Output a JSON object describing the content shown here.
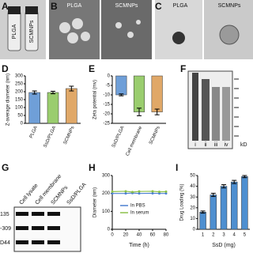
{
  "panel_labels": [
    "A",
    "B",
    "C",
    "D",
    "E",
    "F",
    "G",
    "H",
    "I"
  ],
  "images": {
    "A": [
      "PLGA",
      "SCMNPs"
    ],
    "B": [
      "PLGA",
      "SCMNPs"
    ],
    "C": [
      "PLGA",
      "SCMNPs"
    ],
    "F": {
      "lanes": [
        "i",
        "ii",
        "iii",
        "iv"
      ],
      "unit": "kD"
    },
    "G": {
      "columns": [
        "Cell lysate",
        "Cell membrane",
        "SCMNPs",
        "SsD/PLGA"
      ],
      "rows": [
        "135",
        "-309",
        "D44"
      ]
    }
  },
  "chart_data": [
    {
      "type": "bar",
      "ylabel": "Z-average diameter (nm)",
      "categories": [
        "PLGA",
        "SsD/PLGA",
        "SCMNPs"
      ],
      "values": [
        195,
        195,
        220
      ],
      "errors": [
        10,
        8,
        15
      ],
      "colors": [
        "#6f9fd8",
        "#9acd6e",
        "#e0a868"
      ],
      "ylim": [
        0,
        300
      ],
      "yticks": [
        0,
        50,
        100,
        150,
        200,
        250,
        300
      ]
    },
    {
      "type": "bar",
      "ylabel": "Zeta potential (mv)",
      "categories": [
        "SsD/PLGA",
        "Cell membrane",
        "SCMNPs"
      ],
      "values": [
        -10,
        -19,
        -19
      ],
      "errors": [
        0.5,
        2,
        1.5
      ],
      "colors": [
        "#6f9fd8",
        "#9acd6e",
        "#e0a868"
      ],
      "ylim": [
        -25,
        0
      ],
      "yticks": [
        0,
        -5,
        -10,
        -15,
        -20,
        -25
      ]
    },
    {
      "type": "line",
      "xlabel": "Time (h)",
      "ylabel": "Diameter (nm)",
      "x": [
        0,
        20,
        30,
        40,
        60,
        70,
        80
      ],
      "series": [
        {
          "name": "In PBS",
          "color": "#4a7fd0",
          "values": [
            200,
            200,
            202,
            200,
            201,
            200,
            200
          ]
        },
        {
          "name": "In serum",
          "color": "#8cc04a",
          "values": [
            210,
            212,
            208,
            211,
            212,
            209,
            210
          ]
        }
      ],
      "xlim": [
        0,
        80
      ],
      "xticks": [
        0,
        20,
        40,
        60,
        80
      ],
      "ylim": [
        0,
        300
      ],
      "yticks": [
        0,
        100,
        200,
        300
      ]
    },
    {
      "type": "bar",
      "xlabel": "SsD (mg)",
      "ylabel": "Drug Loading (%)",
      "categories": [
        "1",
        "2",
        "3",
        "4",
        "5"
      ],
      "values": [
        16,
        32,
        40,
        44,
        49
      ],
      "errors": [
        1,
        1.5,
        1.5,
        1.5,
        1
      ],
      "colors": [
        "#4e8fd0",
        "#4e8fd0",
        "#4e8fd0",
        "#4e8fd0",
        "#4e8fd0"
      ],
      "ylim": [
        0,
        50
      ],
      "yticks": [
        0,
        10,
        20,
        30,
        40,
        50
      ]
    }
  ]
}
